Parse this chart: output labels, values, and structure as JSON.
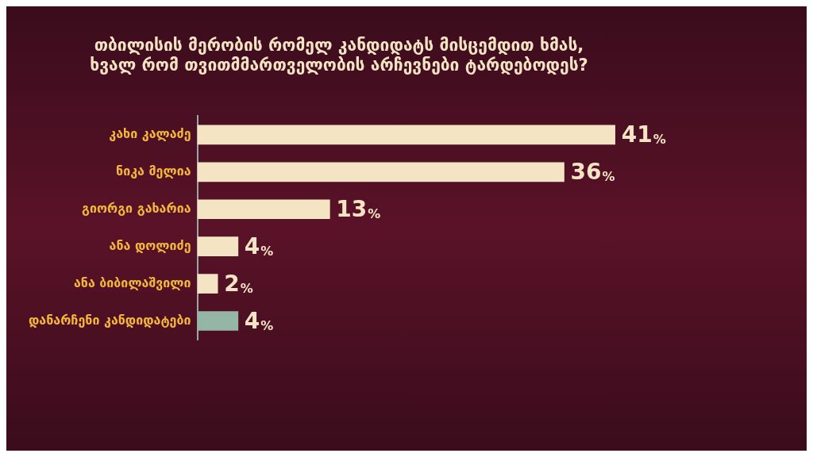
{
  "chart_data": {
    "type": "bar",
    "orientation": "horizontal",
    "title": [
      "თბილისის მერობის რომელ კანდიდატს მისცემდით ხმას,",
      "ხვალ რომ თვითმმართველობის არჩევნები ტარდებოდეს?"
    ],
    "categories": [
      "კახი კალაძე",
      "ნიკა მელია",
      "გიორგი გახარია",
      "ანა დოლიძე",
      "ანა ბიბილაშვილი",
      "დანარჩენი კანდიდატები"
    ],
    "values": [
      41,
      36,
      13,
      4,
      2,
      4
    ],
    "colors": [
      "#f4e4c4",
      "#f4e4c4",
      "#f4e4c4",
      "#f4e4c4",
      "#f4e4c4",
      "#95b5a6"
    ],
    "value_labels": [
      "41%",
      "36%",
      "13%",
      "4%",
      "2%",
      "4%"
    ],
    "grid": false,
    "legend": false
  }
}
